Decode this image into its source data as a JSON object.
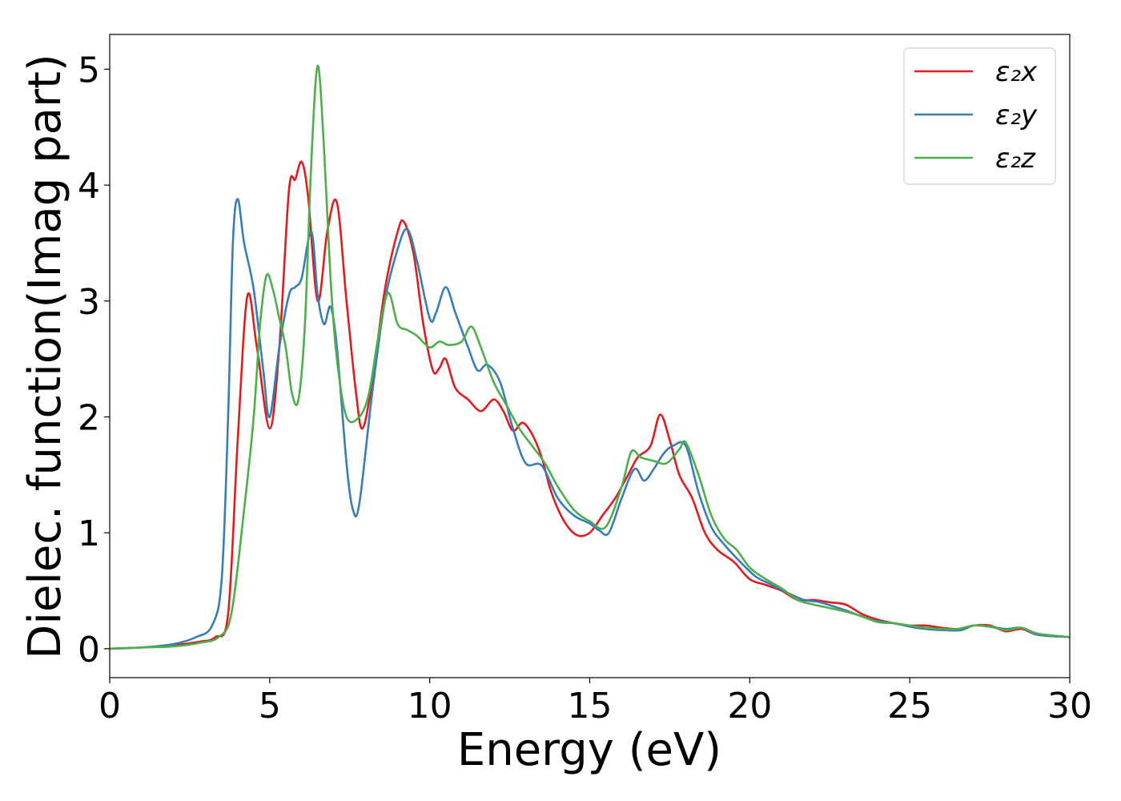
{
  "chart_data": {
    "type": "line",
    "xlabel": "Energy (eV)",
    "ylabel": "Dielec. function(Imag part)",
    "xlim": [
      0,
      30
    ],
    "ylim": [
      -0.25,
      5.3
    ],
    "x_ticks": [
      0,
      5,
      10,
      15,
      20,
      25,
      30
    ],
    "y_ticks": [
      0,
      1,
      2,
      3,
      4,
      5
    ],
    "grid": false,
    "legend_position": "top-right",
    "series": [
      {
        "name": "ε₂x",
        "color": "#e41a1c",
        "points": [
          [
            0,
            0
          ],
          [
            1,
            0.01
          ],
          [
            2,
            0.03
          ],
          [
            2.8,
            0.06
          ],
          [
            3.3,
            0.1
          ],
          [
            3.7,
            0.3
          ],
          [
            4.0,
            1.8
          ],
          [
            4.3,
            3.04
          ],
          [
            4.6,
            2.6
          ],
          [
            5.0,
            1.9
          ],
          [
            5.3,
            2.6
          ],
          [
            5.6,
            3.95
          ],
          [
            5.8,
            4.05
          ],
          [
            6.0,
            4.2
          ],
          [
            6.2,
            3.9
          ],
          [
            6.5,
            3.0
          ],
          [
            6.8,
            3.6
          ],
          [
            7.1,
            3.85
          ],
          [
            7.4,
            3.0
          ],
          [
            7.7,
            2.2
          ],
          [
            7.9,
            1.9
          ],
          [
            8.2,
            2.3
          ],
          [
            8.6,
            3.1
          ],
          [
            9.0,
            3.6
          ],
          [
            9.2,
            3.68
          ],
          [
            9.5,
            3.4
          ],
          [
            9.8,
            2.8
          ],
          [
            10.1,
            2.4
          ],
          [
            10.3,
            2.42
          ],
          [
            10.5,
            2.5
          ],
          [
            10.8,
            2.25
          ],
          [
            11.2,
            2.15
          ],
          [
            11.6,
            2.05
          ],
          [
            12.0,
            2.15
          ],
          [
            12.3,
            2.05
          ],
          [
            12.6,
            1.88
          ],
          [
            12.9,
            1.95
          ],
          [
            13.2,
            1.85
          ],
          [
            13.5,
            1.65
          ],
          [
            13.8,
            1.35
          ],
          [
            14.2,
            1.1
          ],
          [
            14.6,
            0.98
          ],
          [
            15.0,
            1.0
          ],
          [
            15.4,
            1.15
          ],
          [
            15.8,
            1.3
          ],
          [
            16.2,
            1.5
          ],
          [
            16.5,
            1.65
          ],
          [
            16.9,
            1.75
          ],
          [
            17.2,
            2.02
          ],
          [
            17.5,
            1.8
          ],
          [
            17.8,
            1.5
          ],
          [
            18.2,
            1.3
          ],
          [
            18.6,
            1.0
          ],
          [
            19.0,
            0.85
          ],
          [
            19.5,
            0.75
          ],
          [
            20.0,
            0.6
          ],
          [
            20.5,
            0.55
          ],
          [
            21.0,
            0.5
          ],
          [
            21.5,
            0.42
          ],
          [
            22.0,
            0.42
          ],
          [
            22.5,
            0.4
          ],
          [
            23.0,
            0.38
          ],
          [
            23.5,
            0.3
          ],
          [
            24.0,
            0.25
          ],
          [
            24.5,
            0.22
          ],
          [
            25.0,
            0.2
          ],
          [
            25.5,
            0.2
          ],
          [
            26.0,
            0.18
          ],
          [
            26.5,
            0.17
          ],
          [
            27.0,
            0.2
          ],
          [
            27.5,
            0.2
          ],
          [
            28.0,
            0.15
          ],
          [
            28.5,
            0.17
          ],
          [
            29.0,
            0.12
          ],
          [
            30.0,
            0.1
          ]
        ]
      },
      {
        "name": "ε₂y",
        "color": "#377eb8",
        "points": [
          [
            0,
            0
          ],
          [
            1,
            0.01
          ],
          [
            2,
            0.04
          ],
          [
            2.7,
            0.1
          ],
          [
            3.2,
            0.2
          ],
          [
            3.5,
            0.6
          ],
          [
            3.7,
            2.0
          ],
          [
            3.85,
            3.5
          ],
          [
            4.0,
            3.88
          ],
          [
            4.2,
            3.5
          ],
          [
            4.5,
            3.1
          ],
          [
            4.8,
            2.4
          ],
          [
            5.0,
            2.0
          ],
          [
            5.3,
            2.6
          ],
          [
            5.6,
            3.05
          ],
          [
            5.8,
            3.12
          ],
          [
            6.0,
            3.2
          ],
          [
            6.3,
            3.6
          ],
          [
            6.5,
            3.05
          ],
          [
            6.7,
            2.8
          ],
          [
            6.9,
            2.95
          ],
          [
            7.1,
            2.6
          ],
          [
            7.4,
            1.6
          ],
          [
            7.6,
            1.2
          ],
          [
            7.8,
            1.25
          ],
          [
            8.2,
            2.2
          ],
          [
            8.6,
            3.0
          ],
          [
            9.0,
            3.45
          ],
          [
            9.3,
            3.62
          ],
          [
            9.6,
            3.35
          ],
          [
            10.0,
            2.85
          ],
          [
            10.2,
            2.9
          ],
          [
            10.5,
            3.12
          ],
          [
            10.8,
            2.9
          ],
          [
            11.2,
            2.6
          ],
          [
            11.5,
            2.4
          ],
          [
            11.8,
            2.45
          ],
          [
            12.2,
            2.3
          ],
          [
            12.6,
            1.9
          ],
          [
            13.0,
            1.6
          ],
          [
            13.5,
            1.58
          ],
          [
            14.0,
            1.3
          ],
          [
            14.5,
            1.15
          ],
          [
            15.0,
            1.08
          ],
          [
            15.3,
            1.02
          ],
          [
            15.6,
            1.0
          ],
          [
            16.0,
            1.3
          ],
          [
            16.4,
            1.55
          ],
          [
            16.7,
            1.45
          ],
          [
            17.0,
            1.55
          ],
          [
            17.3,
            1.68
          ],
          [
            17.6,
            1.75
          ],
          [
            18.0,
            1.75
          ],
          [
            18.4,
            1.35
          ],
          [
            18.8,
            1.05
          ],
          [
            19.2,
            0.9
          ],
          [
            19.7,
            0.75
          ],
          [
            20.2,
            0.62
          ],
          [
            20.7,
            0.55
          ],
          [
            21.2,
            0.48
          ],
          [
            21.7,
            0.42
          ],
          [
            22.2,
            0.4
          ],
          [
            23.0,
            0.33
          ],
          [
            23.8,
            0.25
          ],
          [
            24.5,
            0.22
          ],
          [
            25.2,
            0.18
          ],
          [
            26.0,
            0.16
          ],
          [
            26.6,
            0.16
          ],
          [
            27.0,
            0.2
          ],
          [
            27.5,
            0.19
          ],
          [
            28.0,
            0.17
          ],
          [
            28.5,
            0.18
          ],
          [
            29.0,
            0.12
          ],
          [
            30.0,
            0.1
          ]
        ]
      },
      {
        "name": "ε₂z",
        "color": "#4daf4a",
        "points": [
          [
            0,
            0
          ],
          [
            1,
            0.01
          ],
          [
            2,
            0.02
          ],
          [
            2.8,
            0.05
          ],
          [
            3.4,
            0.1
          ],
          [
            3.8,
            0.3
          ],
          [
            4.2,
            1.2
          ],
          [
            4.5,
            2.0
          ],
          [
            4.7,
            2.8
          ],
          [
            4.9,
            3.22
          ],
          [
            5.1,
            3.1
          ],
          [
            5.3,
            2.85
          ],
          [
            5.5,
            2.6
          ],
          [
            5.7,
            2.2
          ],
          [
            5.9,
            2.15
          ],
          [
            6.1,
            2.8
          ],
          [
            6.3,
            4.2
          ],
          [
            6.5,
            5.03
          ],
          [
            6.7,
            4.3
          ],
          [
            6.9,
            3.2
          ],
          [
            7.1,
            2.5
          ],
          [
            7.4,
            2.0
          ],
          [
            7.8,
            2.0
          ],
          [
            8.1,
            2.2
          ],
          [
            8.4,
            2.7
          ],
          [
            8.7,
            3.07
          ],
          [
            9.0,
            2.8
          ],
          [
            9.3,
            2.75
          ],
          [
            9.6,
            2.7
          ],
          [
            10.0,
            2.6
          ],
          [
            10.3,
            2.65
          ],
          [
            10.6,
            2.62
          ],
          [
            11.0,
            2.65
          ],
          [
            11.3,
            2.78
          ],
          [
            11.6,
            2.6
          ],
          [
            12.0,
            2.3
          ],
          [
            12.4,
            2.1
          ],
          [
            12.8,
            1.9
          ],
          [
            13.2,
            1.75
          ],
          [
            13.6,
            1.6
          ],
          [
            14.0,
            1.4
          ],
          [
            14.5,
            1.2
          ],
          [
            15.0,
            1.1
          ],
          [
            15.5,
            1.05
          ],
          [
            16.0,
            1.4
          ],
          [
            16.3,
            1.7
          ],
          [
            16.6,
            1.65
          ],
          [
            17.0,
            1.62
          ],
          [
            17.4,
            1.6
          ],
          [
            17.8,
            1.72
          ],
          [
            18.0,
            1.78
          ],
          [
            18.4,
            1.5
          ],
          [
            18.8,
            1.15
          ],
          [
            19.2,
            0.95
          ],
          [
            19.6,
            0.85
          ],
          [
            20.0,
            0.7
          ],
          [
            20.5,
            0.6
          ],
          [
            21.0,
            0.52
          ],
          [
            21.5,
            0.42
          ],
          [
            22.0,
            0.38
          ],
          [
            22.5,
            0.35
          ],
          [
            23.0,
            0.32
          ],
          [
            23.5,
            0.28
          ],
          [
            24.0,
            0.23
          ],
          [
            24.5,
            0.22
          ],
          [
            25.0,
            0.2
          ],
          [
            25.5,
            0.18
          ],
          [
            26.0,
            0.17
          ],
          [
            26.5,
            0.17
          ],
          [
            27.0,
            0.2
          ],
          [
            27.5,
            0.19
          ],
          [
            28.0,
            0.16
          ],
          [
            28.5,
            0.18
          ],
          [
            29.0,
            0.13
          ],
          [
            30.0,
            0.1
          ]
        ]
      }
    ]
  }
}
